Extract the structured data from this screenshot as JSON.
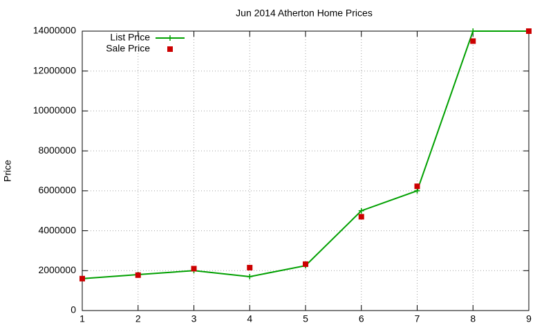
{
  "chart_data": {
    "type": "line",
    "title": "Jun 2014 Atherton Home Prices",
    "y_label": "Price",
    "x": [
      1,
      2,
      3,
      4,
      5,
      6,
      7,
      8,
      9
    ],
    "series": [
      {
        "name": "List Price",
        "color": "#00a000",
        "mode": "lines+markers",
        "marker": "plus",
        "values": [
          1600000,
          1800000,
          2000000,
          1700000,
          2250000,
          5000000,
          6000000,
          14000000,
          14000000
        ]
      },
      {
        "name": "Sale Price",
        "color": "#cc0000",
        "mode": "markers",
        "marker": "square",
        "values": [
          1600000,
          1775000,
          2100000,
          2150000,
          2325000,
          4700000,
          6225000,
          13500000,
          14000000
        ]
      }
    ],
    "xlim": [
      1,
      9
    ],
    "xticks": [
      1,
      2,
      3,
      4,
      5,
      6,
      7,
      8,
      9
    ],
    "ylim": [
      0,
      14000000
    ],
    "yticks": [
      0,
      2000000,
      4000000,
      6000000,
      8000000,
      10000000,
      12000000,
      14000000
    ],
    "grid": true,
    "legend": "top-left"
  }
}
